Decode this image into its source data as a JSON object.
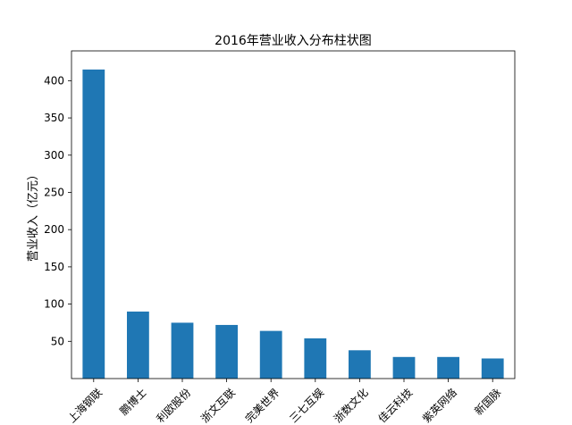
{
  "chart_data": {
    "type": "bar",
    "title": "2016年营业收入分布柱状图",
    "xlabel": "",
    "ylabel": "营业收入（亿元）",
    "categories": [
      "上海钢联",
      "鹏博士",
      "利欧股份",
      "浙文互联",
      "完美世界",
      "三七互娱",
      "浙数文化",
      "佳云科技",
      "紫英网络",
      "新国脉"
    ],
    "values": [
      415,
      90,
      75,
      72,
      64,
      54,
      38,
      29,
      29,
      27
    ],
    "ylim": [
      0,
      440
    ],
    "yticks": [
      50,
      100,
      150,
      200,
      250,
      300,
      350,
      400
    ],
    "bar_color": "#1f77b4",
    "grid": false,
    "legend": "none"
  }
}
